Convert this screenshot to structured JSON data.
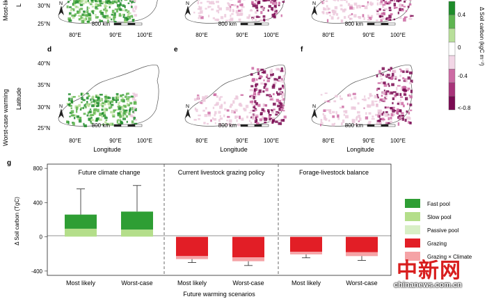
{
  "colors": {
    "green_dark": "#1e8c2a",
    "green_mid": "#5fb550",
    "green_light": "#b8df9a",
    "pink_light": "#ecc9dc",
    "pink_mid": "#cc6aa3",
    "purple_dark": "#7a0a52",
    "fast_pool": "#2e9e34",
    "slow_pool": "#b4de8a",
    "passive_pool": "#d8efc6",
    "grazing": "#e21e26",
    "grazing_climate": "#f5a3a6"
  },
  "rows": {
    "top_label": "Most-lik",
    "bottom_label": "Worst-case warming"
  },
  "maps": {
    "top_lat_ticks": [
      "30°N",
      "25°N"
    ],
    "bottom_lat_ticks": [
      "40°N",
      "35°N",
      "30°N",
      "25°N"
    ],
    "lon_ticks": [
      "80°E",
      "90°E",
      "100°E"
    ],
    "lat_label": "Latitude",
    "lon_label": "Longitude",
    "top_lat_label": "L",
    "scale_text": "800 km",
    "north": "N",
    "panel_letters": [
      "d",
      "e",
      "f"
    ],
    "panels": [
      {
        "id": "a",
        "pattern": "green"
      },
      {
        "id": "b",
        "pattern": "purple"
      },
      {
        "id": "c",
        "pattern": "purple"
      },
      {
        "id": "d",
        "pattern": "green"
      },
      {
        "id": "e",
        "pattern": "purple"
      },
      {
        "id": "f",
        "pattern": "purple"
      }
    ]
  },
  "colorbar": {
    "title": "Δ Soil carbon (kgC m⁻²)",
    "ticks": [
      "0.4",
      "0",
      "-0.4",
      "<-0.8"
    ],
    "stops": [
      0.8,
      0.4,
      0.2,
      0,
      -0.2,
      -0.4,
      -0.6,
      -0.8
    ]
  },
  "panel_g": {
    "letter": "g",
    "sections": [
      "Future climate change",
      "Current livestock grazing policy",
      "Forage-livestock balance"
    ],
    "legend": [
      "Fast pool",
      "Slow pool",
      "Passive pool",
      "Grazing",
      "Grazing × Climate"
    ]
  },
  "chart_data": {
    "type": "bar",
    "title": "",
    "xlabel": "Future warming scenarios",
    "ylabel": "Δ Soil carbon (TgC)",
    "ylim": [
      -450,
      850
    ],
    "yticks": [
      800,
      400,
      0,
      -400
    ],
    "categories": [
      "Most likely",
      "Worst-case",
      "Most likely",
      "Worst-case",
      "Most likely",
      "Worst-case"
    ],
    "series": [
      {
        "name": "Fast pool",
        "values": [
          165,
          210,
          0,
          0,
          0,
          0
        ]
      },
      {
        "name": "Slow pool",
        "values": [
          90,
          80,
          0,
          0,
          0,
          0
        ]
      },
      {
        "name": "Passive pool",
        "values": [
          5,
          5,
          0,
          0,
          0,
          0
        ]
      },
      {
        "name": "Grazing",
        "values": [
          0,
          0,
          -225,
          -240,
          -175,
          -180
        ]
      },
      {
        "name": "Grazing × Climate",
        "values": [
          0,
          0,
          -35,
          -45,
          -30,
          -45
        ]
      }
    ],
    "error_tops": [
      560,
      600,
      -300,
      -335,
      -245,
      -275
    ]
  },
  "watermark": {
    "glyphs": "中新网",
    "site": "chinanews.com.cn"
  }
}
